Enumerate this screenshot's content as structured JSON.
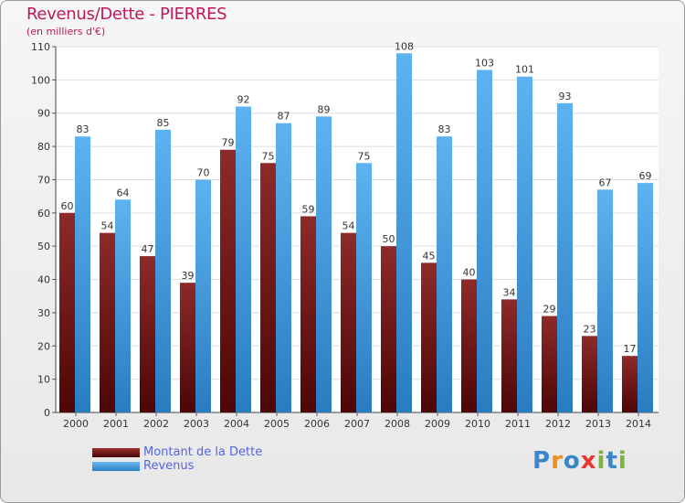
{
  "title": "Revenus/Dette - PIERRES",
  "subtitle": "(en milliers d'€)",
  "logo_text": "Proxiti",
  "colors": {
    "dette": "#7a1c1c",
    "revenus": "#4aa3e6",
    "title": "#c2185b",
    "legend_text": "#5566dd"
  },
  "chart_data": {
    "type": "bar",
    "title": "Revenus/Dette - PIERRES",
    "ylabel": "(en milliers d'€)",
    "categories": [
      "2000",
      "2001",
      "2002",
      "2003",
      "2004",
      "2005",
      "2006",
      "2007",
      "2008",
      "2009",
      "2010",
      "2011",
      "2012",
      "2013",
      "2014"
    ],
    "series": [
      {
        "name": "Montant de la Dette",
        "values": [
          60,
          54,
          47,
          39,
          79,
          75,
          59,
          54,
          50,
          45,
          40,
          34,
          29,
          23,
          17
        ]
      },
      {
        "name": "Revenus",
        "values": [
          83,
          64,
          85,
          70,
          92,
          87,
          89,
          75,
          108,
          83,
          103,
          101,
          93,
          67,
          69
        ]
      }
    ],
    "ylim": [
      0,
      110
    ],
    "yticks": [
      0,
      10,
      20,
      30,
      40,
      50,
      60,
      70,
      80,
      90,
      100,
      110
    ],
    "grid": true,
    "legend": "bottom-left"
  },
  "legend": [
    {
      "label": "Montant de la Dette"
    },
    {
      "label": "Revenus"
    }
  ]
}
